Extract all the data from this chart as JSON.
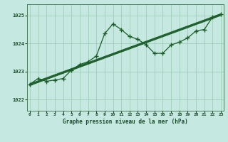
{
  "xlabel": "Graphe pression niveau de la mer (hPa)",
  "background_color": "#c5e8e0",
  "grid_color": "#98c8b0",
  "line_color": "#1a5c28",
  "x_ticks": [
    0,
    1,
    2,
    3,
    4,
    5,
    6,
    7,
    8,
    9,
    10,
    11,
    12,
    13,
    14,
    15,
    16,
    17,
    18,
    19,
    20,
    21,
    22,
    23
  ],
  "y_ticks": [
    1022,
    1023,
    1024,
    1025
  ],
  "ylim": [
    1021.6,
    1025.4
  ],
  "xlim": [
    -0.3,
    23.3
  ],
  "hours": [
    0,
    1,
    2,
    3,
    4,
    5,
    6,
    7,
    8,
    9,
    10,
    11,
    12,
    13,
    14,
    15,
    16,
    17,
    18,
    19,
    20,
    21,
    22,
    23
  ],
  "main_values": [
    1022.55,
    1022.75,
    1022.65,
    1022.7,
    1022.75,
    1023.05,
    1023.25,
    1023.35,
    1023.55,
    1024.35,
    1024.7,
    1024.5,
    1024.25,
    1024.15,
    1023.95,
    1023.65,
    1023.65,
    1023.95,
    1024.05,
    1024.2,
    1024.45,
    1024.5,
    1024.95,
    1025.05
  ],
  "trend_lines": [
    {
      "x0": 0,
      "y0": 1022.5,
      "x1": 23,
      "y1": 1025.0
    },
    {
      "x0": 0,
      "y0": 1022.52,
      "x1": 23,
      "y1": 1025.02
    },
    {
      "x0": 0,
      "y0": 1022.54,
      "x1": 23,
      "y1": 1025.04
    },
    {
      "x0": 0,
      "y0": 1022.56,
      "x1": 23,
      "y1": 1025.06
    }
  ]
}
